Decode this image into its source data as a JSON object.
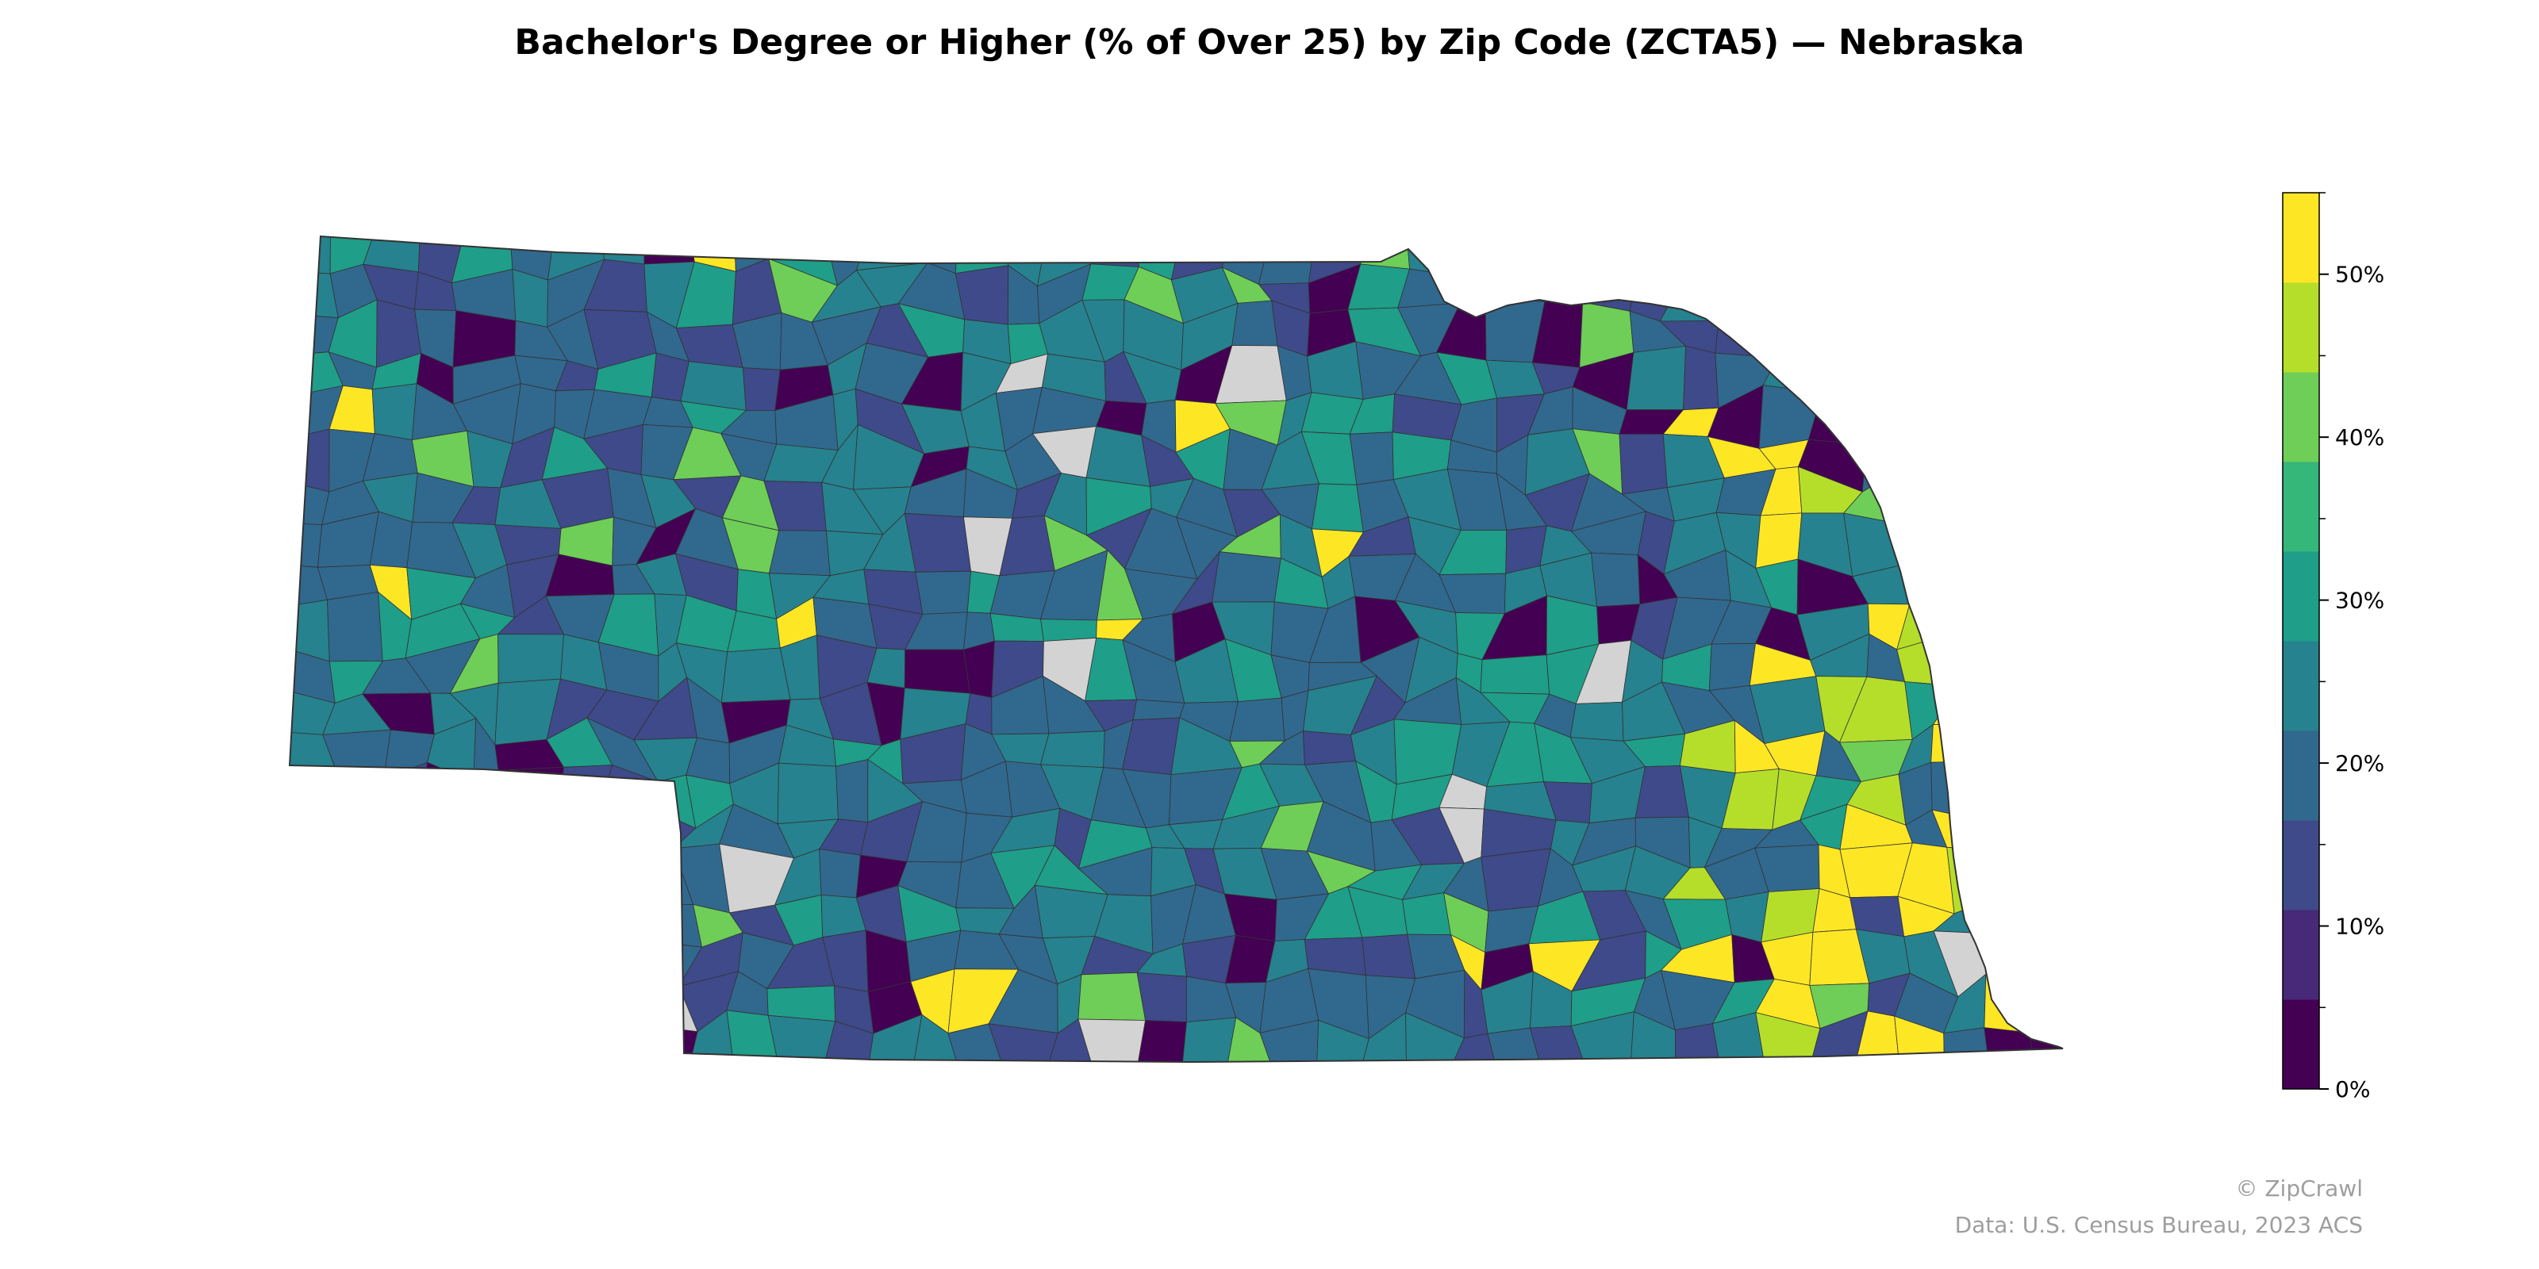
{
  "map": {
    "title": "Bachelor's Degree or Higher (% of Over 25) by Zip Code (ZCTA5) — Nebraska",
    "region": "Nebraska",
    "no_data_color": "#d3d3d3",
    "border_color": "#333333"
  },
  "colorbar": {
    "min": 0,
    "max": 55,
    "colors": [
      "#440154",
      "#482878",
      "#3e4a89",
      "#31688e",
      "#26828e",
      "#1f9e89",
      "#35b779",
      "#6ece58",
      "#b5de2b",
      "#fde725"
    ],
    "ticks": [
      {
        "value": 0,
        "label": "0%"
      },
      {
        "value": 10,
        "label": "10%"
      },
      {
        "value": 20,
        "label": "20%"
      },
      {
        "value": 30,
        "label": "30%"
      },
      {
        "value": 40,
        "label": "40%"
      },
      {
        "value": 50,
        "label": "50%"
      }
    ],
    "minor_ticks": [
      5,
      15,
      25,
      35,
      45,
      55
    ]
  },
  "credits": {
    "brand": "© ZipCrawl",
    "source": "Data: U.S. Census Bureau, 2023 ACS"
  }
}
